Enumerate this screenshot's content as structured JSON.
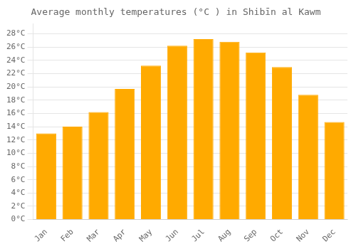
{
  "chart_data": {
    "type": "bar",
    "title": "Average monthly temperatures (°C ) in Shibīn al Kawm",
    "categories": [
      "Jan",
      "Feb",
      "Mar",
      "Apr",
      "May",
      "Jun",
      "Jul",
      "Aug",
      "Sep",
      "Oct",
      "Nov",
      "Dec"
    ],
    "values": [
      13.0,
      14.0,
      16.2,
      19.7,
      23.2,
      26.2,
      27.2,
      26.8,
      25.2,
      23.0,
      18.8,
      14.7
    ],
    "color": "#FFAA00",
    "ylim": [
      0,
      29.5
    ],
    "yticks": [
      {
        "value": 0,
        "label": "0°C"
      },
      {
        "value": 2,
        "label": "2°C"
      },
      {
        "value": 4,
        "label": "4°C"
      },
      {
        "value": 6,
        "label": "6°C"
      },
      {
        "value": 8,
        "label": "8°C"
      },
      {
        "value": 10,
        "label": "10°C"
      },
      {
        "value": 12,
        "label": "12°C"
      },
      {
        "value": 14,
        "label": "14°C"
      },
      {
        "value": 16,
        "label": "16°C"
      },
      {
        "value": 18,
        "label": "18°C"
      },
      {
        "value": 20,
        "label": "20°C"
      },
      {
        "value": 22,
        "label": "22°C"
      },
      {
        "value": 24,
        "label": "24°C"
      },
      {
        "value": 26,
        "label": "26°C"
      },
      {
        "value": 28,
        "label": "28°C"
      }
    ],
    "grid": true
  }
}
